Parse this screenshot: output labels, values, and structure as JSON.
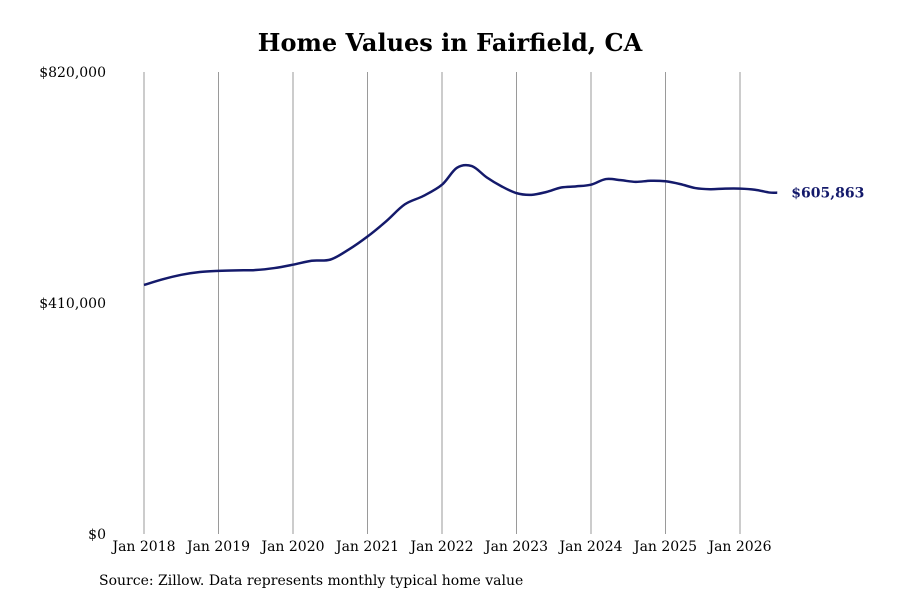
{
  "chart_data": {
    "type": "line",
    "title": "Home Values in Fairfield, CA",
    "ylim": [
      0,
      820000
    ],
    "y_tick_labels": [
      "$0",
      "$410,000",
      "$820,000"
    ],
    "y_tick_values": [
      0,
      410000,
      820000
    ],
    "x_tick_labels": [
      "Jan 2018",
      "Jan 2019",
      "Jan 2020",
      "Jan 2021",
      "Jan 2022",
      "Jan 2023",
      "Jan 2024",
      "Jan 2025",
      "Jan 2026"
    ],
    "x_tick_values": [
      2018,
      2019,
      2020,
      2021,
      2022,
      2023,
      2024,
      2025,
      2026
    ],
    "grid": "vertical",
    "line_color": "#141a6b",
    "grid_color": "#9a9a9a",
    "series": [
      {
        "x": [
          2018.0,
          2018.25,
          2018.5,
          2018.75,
          2019.0,
          2019.25,
          2019.5,
          2019.75,
          2020.0,
          2020.25,
          2020.5,
          2020.75,
          2021.0,
          2021.25,
          2021.5,
          2021.75,
          2022.0,
          2022.2,
          2022.4,
          2022.6,
          2022.8,
          2023.0,
          2023.2,
          2023.4,
          2023.6,
          2023.8,
          2024.0,
          2024.2,
          2024.4,
          2024.6,
          2024.8,
          2025.0,
          2025.2,
          2025.4,
          2025.6,
          2025.8,
          2026.0,
          2026.2,
          2026.4,
          2026.5
        ],
        "y": [
          442000,
          452000,
          460000,
          465000,
          467000,
          468000,
          468500,
          472000,
          478000,
          485000,
          487000,
          505000,
          528000,
          555000,
          585000,
          600000,
          620000,
          650000,
          653000,
          633000,
          617000,
          605000,
          602000,
          607000,
          615000,
          617000,
          620000,
          630000,
          628000,
          625000,
          627000,
          626000,
          621000,
          614000,
          612000,
          613000,
          613000,
          611000,
          606000,
          605863
        ]
      }
    ],
    "end_label": "$605,863"
  },
  "footer": {
    "source": "Source: Zillow. Data represents monthly typical home value"
  }
}
